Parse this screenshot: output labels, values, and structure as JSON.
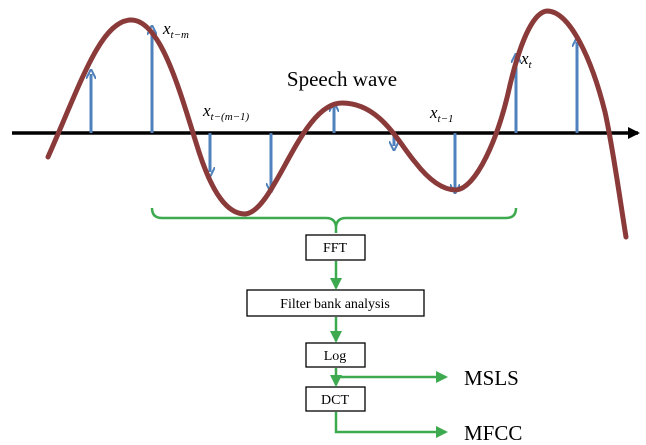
{
  "wave_title": "Speech wave",
  "samples": {
    "x_t_m": {
      "base": "x",
      "sub": "t−m"
    },
    "x_t_m1": {
      "base": "x",
      "sub": "t−(m−1)"
    },
    "x_t_1": {
      "base": "x",
      "sub": "t−1"
    },
    "x_t": {
      "base": "x",
      "sub": "t"
    }
  },
  "pipeline": {
    "fft": "FFT",
    "filter_bank": "Filter bank analysis",
    "log": "Log",
    "dct": "DCT"
  },
  "outputs": {
    "msls": "MSLS",
    "mfcc": "MFCC"
  },
  "colors": {
    "wave": "#8B3A3A",
    "sample_arrow": "#4F81BD",
    "flow": "#3DAA4F",
    "axis": "#000000"
  }
}
